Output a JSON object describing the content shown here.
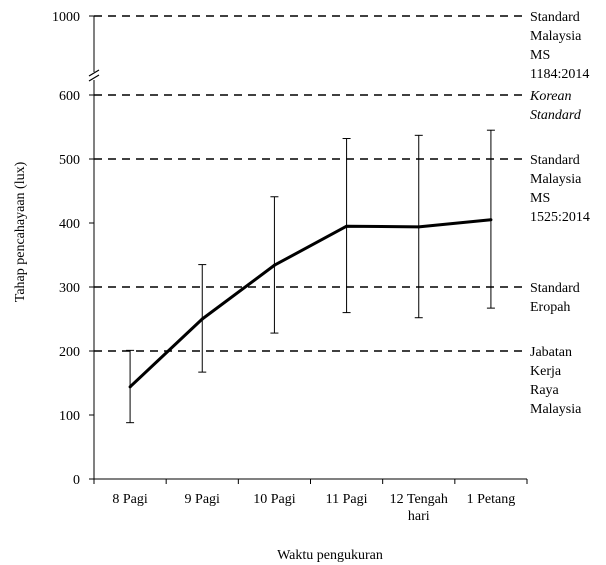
{
  "chart_data": {
    "type": "line",
    "xlabel": "Waktu pengukuran",
    "ylabel": "Tahap pencahayaan (lux)",
    "categories": [
      "8 Pagi",
      "9 Pagi",
      "10 Pagi",
      "11 Pagi",
      "12 Tengah hari",
      "1 Petang"
    ],
    "series": [
      {
        "values": [
          144,
          250,
          334,
          395,
          394,
          405
        ],
        "error_low": [
          88,
          167,
          228,
          260,
          252,
          267
        ],
        "error_high": [
          201,
          335,
          441,
          532,
          537,
          545
        ]
      }
    ],
    "y_ticks": [
      0,
      100,
      200,
      300,
      400,
      500,
      600,
      1000
    ],
    "ylim": [
      0,
      600
    ],
    "y_break": true,
    "y_upper_value": 1000,
    "reference_lines": [
      {
        "value": 1000,
        "label": [
          "Standard",
          "Malaysia",
          "MS",
          "1184:2014"
        ],
        "italic": false
      },
      {
        "value": 600,
        "label": [
          "Korean",
          "Standard"
        ],
        "italic": true
      },
      {
        "value": 500,
        "label": [
          "Standard",
          "Malaysia",
          "MS",
          "1525:2014"
        ],
        "italic": false
      },
      {
        "value": 300,
        "label": [
          "Standard",
          "Eropah"
        ],
        "italic": false
      },
      {
        "value": 200,
        "label": [
          "Jabatan",
          "Kerja",
          "Raya",
          "Malaysia"
        ],
        "italic": false
      }
    ],
    "grid": false,
    "line_color": "#000000"
  }
}
